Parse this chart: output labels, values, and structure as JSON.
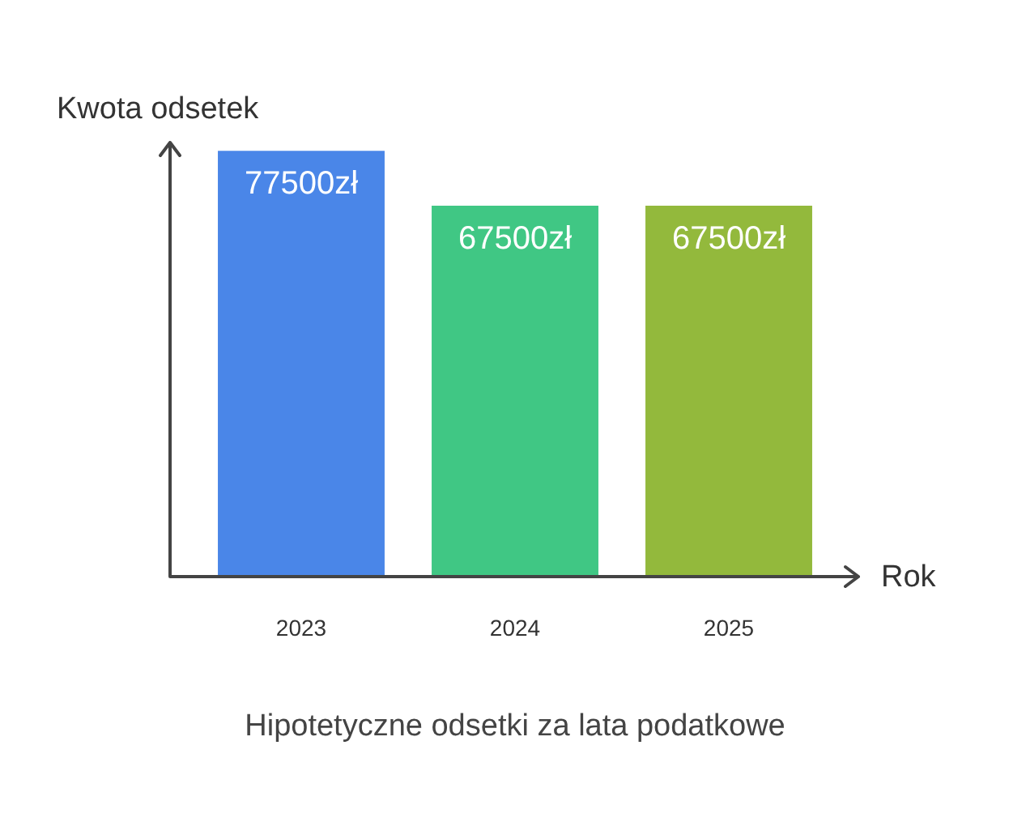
{
  "chart_data": {
    "type": "bar",
    "title": "Hipotetyczne odsetki za lata podatkowe",
    "xlabel": "Rok",
    "ylabel": "Kwota odsetek",
    "categories": [
      "2023",
      "2024",
      "2025"
    ],
    "values": [
      77500,
      67500,
      67500
    ],
    "colors": [
      "#4a86e8",
      "#40c784",
      "#93b93c"
    ],
    "value_labels": [
      "77500zł",
      "67500zł",
      "67500zł"
    ],
    "ylim": [
      0,
      79000
    ],
    "tick_labels": "x",
    "grid": false,
    "legend": false
  }
}
